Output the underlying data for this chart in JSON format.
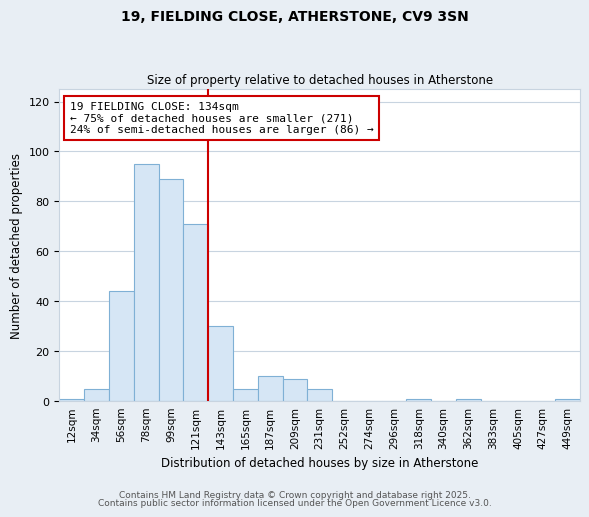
{
  "title_line1": "19, FIELDING CLOSE, ATHERSTONE, CV9 3SN",
  "title_line2": "Size of property relative to detached houses in Atherstone",
  "xlabel": "Distribution of detached houses by size in Atherstone",
  "ylabel": "Number of detached properties",
  "categories": [
    "12sqm",
    "34sqm",
    "56sqm",
    "78sqm",
    "99sqm",
    "121sqm",
    "143sqm",
    "165sqm",
    "187sqm",
    "209sqm",
    "231sqm",
    "252sqm",
    "274sqm",
    "296sqm",
    "318sqm",
    "340sqm",
    "362sqm",
    "383sqm",
    "405sqm",
    "427sqm",
    "449sqm"
  ],
  "values": [
    1,
    5,
    44,
    95,
    89,
    71,
    30,
    5,
    10,
    9,
    5,
    0,
    0,
    0,
    1,
    0,
    1,
    0,
    0,
    0,
    1
  ],
  "bar_color": "#d6e6f5",
  "bar_edge_color": "#7fb0d5",
  "vline_x_pos": 6.0,
  "vline_color": "#cc0000",
  "annotation_title": "19 FIELDING CLOSE: 134sqm",
  "annotation_line1": "← 75% of detached houses are smaller (271)",
  "annotation_line2": "24% of semi-detached houses are larger (86) →",
  "annotation_box_edge": "#cc0000",
  "ylim": [
    0,
    125
  ],
  "yticks": [
    0,
    20,
    40,
    60,
    80,
    100,
    120
  ],
  "footer1": "Contains HM Land Registry data © Crown copyright and database right 2025.",
  "footer2": "Contains public sector information licensed under the Open Government Licence v3.0.",
  "bg_color": "#e8eef4",
  "plot_bg_color": "#ffffff",
  "grid_color": "#c8d4e0"
}
